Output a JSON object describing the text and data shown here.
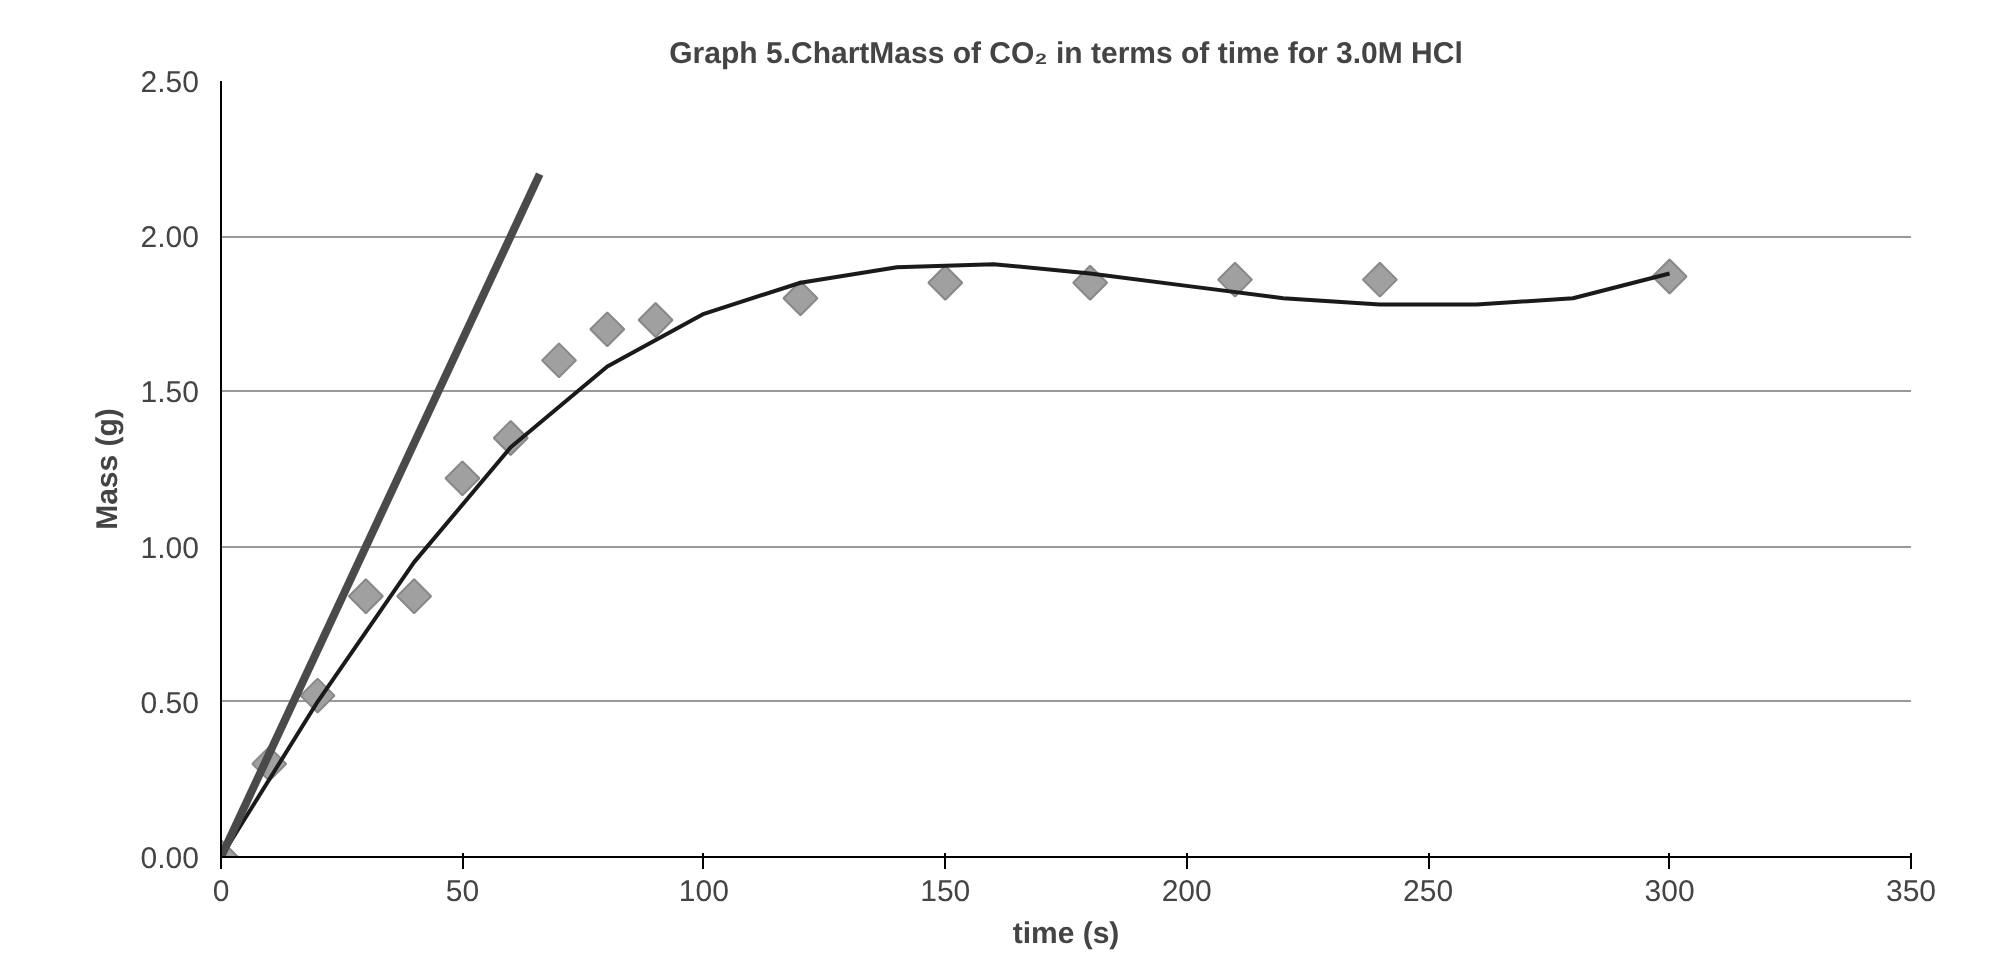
{
  "chart_data": {
    "type": "scatter",
    "title": "Graph 5.ChartMass of CO₂ in terms of time for 3.0M HCl",
    "xlabel": "time (s)",
    "ylabel": "Mass (g)",
    "xlim": [
      0,
      350
    ],
    "xticks": [
      0,
      50,
      100,
      150,
      200,
      250,
      300,
      350
    ],
    "ylim": [
      0,
      2.5
    ],
    "yticks": [
      {
        "value": 0,
        "label": "0.00"
      },
      {
        "value": 0.5,
        "label": "0.50"
      },
      {
        "value": 1,
        "label": "1.00"
      },
      {
        "value": 1.5,
        "label": "1.50"
      },
      {
        "value": 2,
        "label": "2.00"
      },
      {
        "value": 2.5,
        "label": "2.50"
      }
    ],
    "grid": "y",
    "marker": "diamond",
    "series": [
      {
        "color": "#a0a0a0",
        "x": [
          0,
          10,
          20,
          30,
          40,
          50,
          60,
          70,
          80,
          90,
          120,
          150,
          180,
          210,
          240,
          300
        ],
        "values": [
          0,
          0.3,
          0.52,
          0.84,
          0.84,
          1.22,
          1.35,
          1.6,
          1.7,
          1.73,
          1.8,
          1.85,
          1.85,
          1.86,
          1.86,
          1.87
        ]
      },
      {
        "type": "line",
        "color": "#1a1a1a",
        "marker": "none",
        "x": [
          0,
          20,
          40,
          60,
          80,
          100,
          120,
          140,
          160,
          180,
          200,
          220,
          240,
          260,
          280,
          300
        ],
        "values": [
          0,
          0.5,
          0.95,
          1.32,
          1.58,
          1.75,
          1.85,
          1.9,
          1.91,
          1.88,
          1.84,
          1.8,
          1.78,
          1.78,
          1.8,
          1.88
        ]
      },
      {
        "type": "line",
        "color": "#4a4a4a",
        "marker": "none",
        "x": [
          0,
          66
        ],
        "values": [
          0,
          2.2
        ]
      }
    ]
  }
}
